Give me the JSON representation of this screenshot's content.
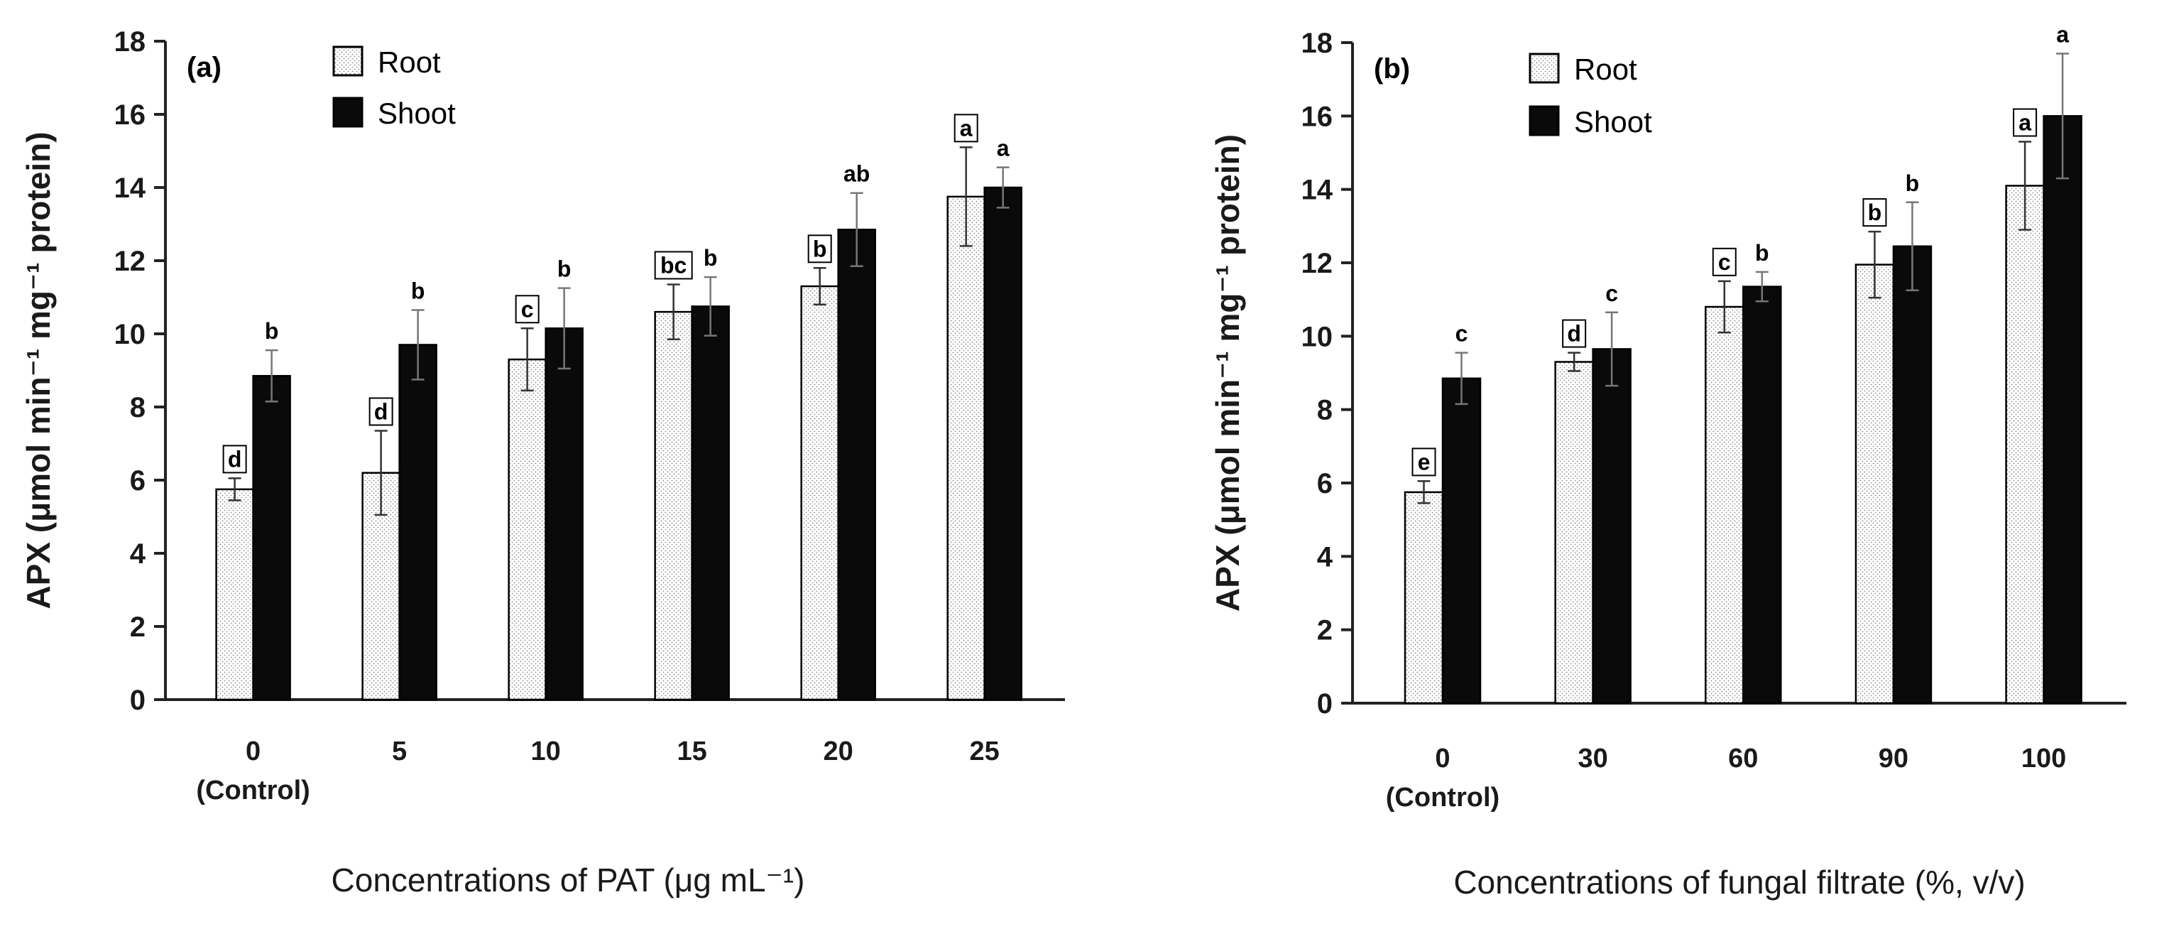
{
  "chart_data": [
    {
      "type": "bar",
      "panel_label": "(a)",
      "categories": [
        "0",
        "5",
        "10",
        "15",
        "20",
        "25"
      ],
      "category_sublabels": [
        "(Control)",
        "",
        "",
        "",
        "",
        ""
      ],
      "series": [
        {
          "name": "Root",
          "values": [
            5.75,
            6.2,
            9.3,
            10.6,
            11.3,
            13.75
          ],
          "errors": [
            0.3,
            1.15,
            0.85,
            0.75,
            0.5,
            1.35
          ],
          "letters": [
            "d",
            "d",
            "c",
            "bc",
            "b",
            "a"
          ]
        },
        {
          "name": "Shoot",
          "values": [
            8.85,
            9.7,
            10.15,
            10.75,
            12.85,
            14.0
          ],
          "errors": [
            0.7,
            0.95,
            1.1,
            0.8,
            1.0,
            0.55
          ],
          "letters": [
            "b",
            "b",
            "b",
            "b",
            "ab",
            "a"
          ]
        }
      ],
      "ylabel": "APX (μmol min⁻¹ mg⁻¹ protein)",
      "xlabel": "Concentrations of PAT (μg mL⁻¹)",
      "ylim": [
        0,
        18
      ],
      "yticks": [
        0,
        2,
        4,
        6,
        8,
        10,
        12,
        14,
        16,
        18
      ],
      "legend_position": "top-center",
      "grid": false
    },
    {
      "type": "bar",
      "panel_label": "(b)",
      "categories": [
        "0",
        "30",
        "60",
        "90",
        "100"
      ],
      "category_sublabels": [
        "(Control)",
        "",
        "",
        "",
        ""
      ],
      "series": [
        {
          "name": "Root",
          "values": [
            5.75,
            9.3,
            10.8,
            11.95,
            14.1
          ],
          "errors": [
            0.3,
            0.25,
            0.7,
            0.9,
            1.2
          ],
          "letters": [
            "e",
            "d",
            "c",
            "b",
            "a"
          ]
        },
        {
          "name": "Shoot",
          "values": [
            8.85,
            9.65,
            11.35,
            12.45,
            16.0
          ],
          "errors": [
            0.7,
            1.0,
            0.4,
            1.2,
            1.7
          ],
          "letters": [
            "c",
            "c",
            "b",
            "b",
            "a"
          ]
        }
      ],
      "ylabel": "APX (μmol min⁻¹ mg⁻¹ protein)",
      "xlabel": "Concentrations of fungal filtrate (%, v/v)",
      "ylim": [
        0,
        18
      ],
      "yticks": [
        0,
        2,
        4,
        6,
        8,
        10,
        12,
        14,
        16,
        18
      ],
      "legend_position": "top-center",
      "grid": false
    }
  ]
}
